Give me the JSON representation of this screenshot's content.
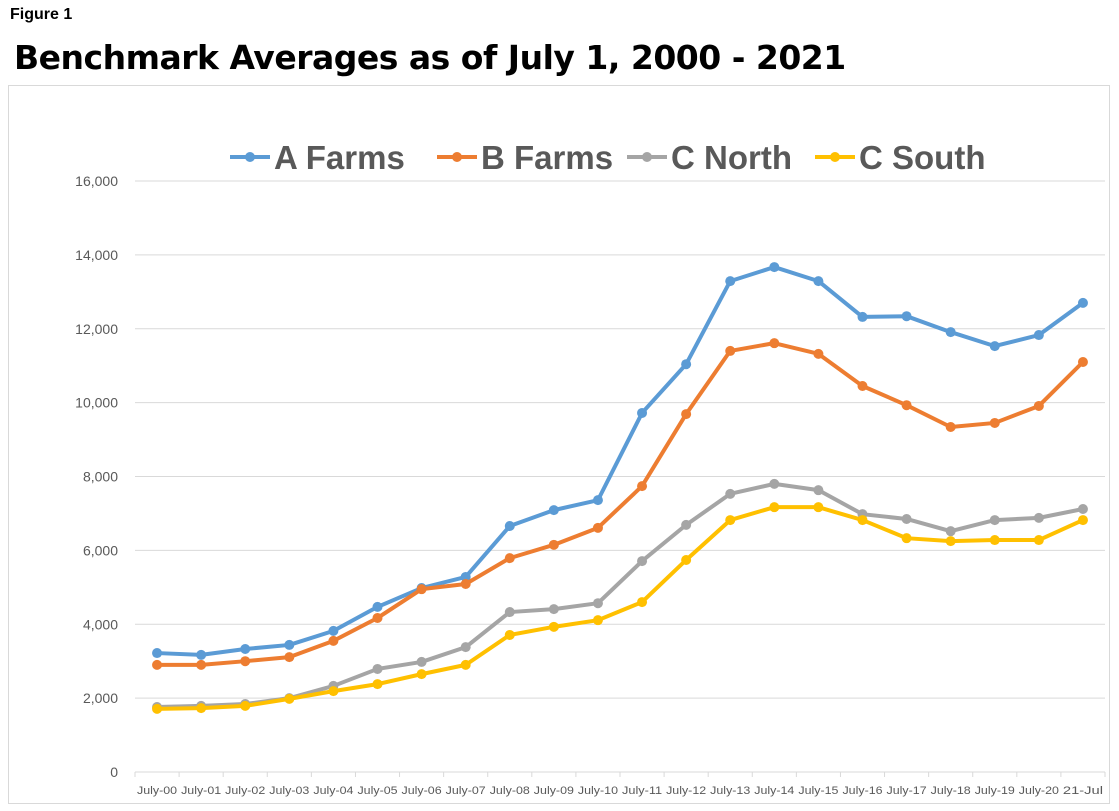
{
  "figure_label": "Figure 1",
  "chart_data": {
    "type": "line",
    "title": "Benchmark Averages as of July 1, 2000 - 2021",
    "xlabel": "",
    "ylabel": "",
    "ylim": [
      0,
      16000
    ],
    "yticks": [
      0,
      2000,
      4000,
      6000,
      8000,
      10000,
      12000,
      14000,
      16000
    ],
    "ytick_labels": [
      "0",
      "2,000",
      "4,000",
      "6,000",
      "8,000",
      "10,000",
      "12,000",
      "14,000",
      "16,000"
    ],
    "grid": true,
    "legend_position": "top",
    "categories": [
      "July-00",
      "July-01",
      "July-02",
      "July-03",
      "July-04",
      "July-05",
      "July-06",
      "July-07",
      "July-08",
      "July-09",
      "July-10",
      "July-11",
      "July-12",
      "July-13",
      "July-14",
      "July-15",
      "July-16",
      "July-17",
      "July-18",
      "July-19",
      "July-20",
      "21-Jul"
    ],
    "series": [
      {
        "name": "A Farms",
        "color": "#5b9bd5",
        "values": [
          3220,
          3170,
          3330,
          3440,
          3820,
          4470,
          4980,
          5280,
          6660,
          7090,
          7360,
          9720,
          11040,
          13290,
          13670,
          13290,
          12320,
          12340,
          11910,
          11530,
          11830,
          12700
        ]
      },
      {
        "name": "B Farms",
        "color": "#ed7d31",
        "values": [
          2900,
          2900,
          3000,
          3110,
          3550,
          4170,
          4950,
          5090,
          5790,
          6150,
          6610,
          7740,
          9690,
          11400,
          11610,
          11320,
          10450,
          9930,
          9340,
          9450,
          9910,
          11100
        ]
      },
      {
        "name": "C North",
        "color": "#a5a5a5",
        "values": [
          1760,
          1790,
          1840,
          2000,
          2330,
          2790,
          2980,
          3380,
          4330,
          4410,
          4570,
          5710,
          6690,
          7530,
          7800,
          7630,
          6980,
          6850,
          6520,
          6820,
          6880,
          7120
        ]
      },
      {
        "name": "C South",
        "color": "#ffc000",
        "values": [
          1710,
          1730,
          1790,
          1980,
          2190,
          2380,
          2650,
          2900,
          3710,
          3930,
          4110,
          4600,
          5740,
          6820,
          7170,
          7170,
          6820,
          6330,
          6250,
          6280,
          6280,
          6820
        ]
      }
    ]
  }
}
